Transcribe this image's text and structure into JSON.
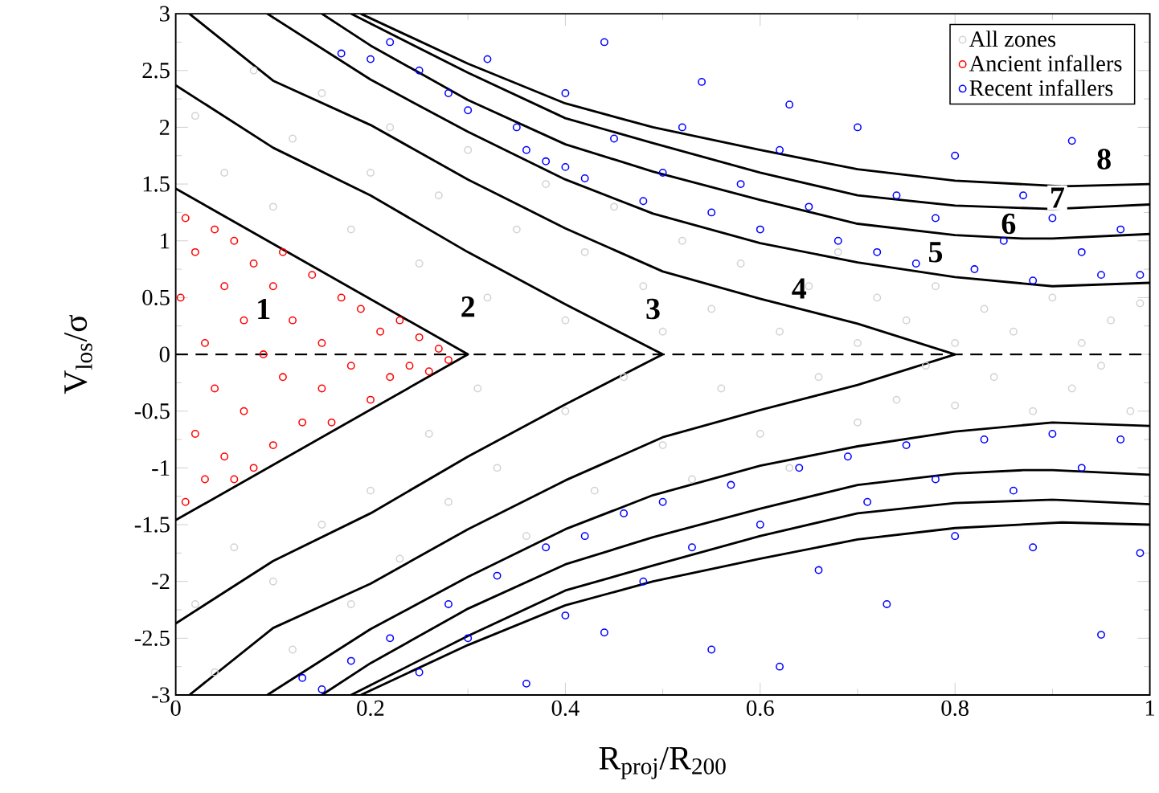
{
  "chart_data": {
    "type": "scatter",
    "xlabel": "R$_{proj}$/R$_{200}$",
    "ylabel": "V$_{los}$/σ",
    "xlim": [
      0,
      1
    ],
    "ylim": [
      -3,
      3
    ],
    "xticks": [
      0,
      0.2,
      0.4,
      0.6,
      0.8,
      1
    ],
    "yticks": [
      -3,
      -2.5,
      -2,
      -1.5,
      -1,
      -0.5,
      0,
      0.5,
      1,
      1.5,
      2,
      2.5,
      3
    ],
    "legend": "top right",
    "series": [
      {
        "name": "All zones",
        "type": "scatter",
        "marker": "circle",
        "color": "#d3d3d3",
        "x": [
          0.02,
          0.05,
          0.08,
          0.1,
          0.12,
          0.15,
          0.18,
          0.2,
          0.22,
          0.25,
          0.27,
          0.3,
          0.32,
          0.35,
          0.38,
          0.4,
          0.42,
          0.45,
          0.48,
          0.5,
          0.52,
          0.55,
          0.58,
          0.6,
          0.62,
          0.65,
          0.68,
          0.7,
          0.72,
          0.75,
          0.78,
          0.8,
          0.83,
          0.86,
          0.9,
          0.93,
          0.96,
          0.99,
          0.02,
          0.04,
          0.06,
          0.1,
          0.12,
          0.15,
          0.18,
          0.2,
          0.23,
          0.26,
          0.28,
          0.31,
          0.33,
          0.36,
          0.4,
          0.43,
          0.46,
          0.5,
          0.53,
          0.56,
          0.6,
          0.63,
          0.66,
          0.7,
          0.74,
          0.77,
          0.8,
          0.84,
          0.88,
          0.92,
          0.95,
          0.98
        ],
        "values": [
          2.1,
          1.6,
          2.5,
          1.3,
          1.9,
          2.3,
          1.1,
          1.6,
          2.0,
          0.8,
          1.4,
          1.8,
          0.5,
          1.1,
          1.5,
          0.3,
          0.9,
          1.3,
          0.6,
          0.2,
          1.0,
          0.4,
          0.8,
          1.1,
          0.2,
          0.6,
          0.9,
          0.1,
          0.5,
          0.3,
          0.6,
          0.1,
          0.4,
          0.2,
          0.5,
          0.1,
          0.3,
          0.45,
          -2.2,
          -2.8,
          -1.7,
          -2.0,
          -2.6,
          -1.5,
          -2.2,
          -1.2,
          -1.8,
          -0.7,
          -1.3,
          -0.3,
          -1.0,
          -1.6,
          -0.5,
          -1.2,
          -0.2,
          -0.8,
          -1.1,
          -0.3,
          -0.7,
          -1.0,
          -0.2,
          -0.6,
          -0.4,
          -0.1,
          -0.45,
          -0.2,
          -0.5,
          -0.3,
          -0.1,
          -0.5
        ]
      },
      {
        "name": "Ancient infallers",
        "type": "scatter",
        "marker": "circle",
        "color": "#ff0000",
        "x": [
          0.005,
          0.01,
          0.01,
          0.02,
          0.02,
          0.03,
          0.03,
          0.04,
          0.04,
          0.05,
          0.05,
          0.06,
          0.06,
          0.07,
          0.07,
          0.08,
          0.08,
          0.09,
          0.1,
          0.1,
          0.11,
          0.11,
          0.12,
          0.13,
          0.14,
          0.15,
          0.15,
          0.16,
          0.17,
          0.18,
          0.19,
          0.2,
          0.21,
          0.22,
          0.23,
          0.24,
          0.25,
          0.26,
          0.27,
          0.28
        ],
        "values": [
          0.5,
          1.2,
          -1.3,
          0.9,
          -0.7,
          0.1,
          -1.1,
          1.1,
          -0.3,
          0.6,
          -0.9,
          1.0,
          -1.1,
          0.3,
          -0.5,
          0.8,
          -1.0,
          0.0,
          0.6,
          -0.8,
          0.9,
          -0.2,
          0.3,
          -0.6,
          0.7,
          -0.3,
          0.1,
          -0.6,
          0.5,
          -0.1,
          0.4,
          -0.4,
          0.2,
          -0.2,
          0.3,
          -0.1,
          0.15,
          -0.15,
          0.05,
          -0.05
        ]
      },
      {
        "name": "Recent infallers",
        "type": "scatter",
        "marker": "circle",
        "color": "#0000ff",
        "x": [
          0.17,
          0.2,
          0.22,
          0.25,
          0.28,
          0.3,
          0.32,
          0.35,
          0.36,
          0.38,
          0.4,
          0.4,
          0.42,
          0.44,
          0.45,
          0.48,
          0.5,
          0.52,
          0.54,
          0.55,
          0.58,
          0.6,
          0.62,
          0.63,
          0.65,
          0.68,
          0.7,
          0.72,
          0.74,
          0.76,
          0.78,
          0.8,
          0.82,
          0.85,
          0.87,
          0.88,
          0.9,
          0.92,
          0.93,
          0.95,
          0.97,
          0.99,
          0.13,
          0.15,
          0.18,
          0.22,
          0.25,
          0.28,
          0.3,
          0.33,
          0.36,
          0.38,
          0.4,
          0.42,
          0.44,
          0.46,
          0.48,
          0.5,
          0.53,
          0.55,
          0.57,
          0.6,
          0.62,
          0.64,
          0.66,
          0.69,
          0.71,
          0.73,
          0.75,
          0.78,
          0.8,
          0.83,
          0.86,
          0.88,
          0.9,
          0.93,
          0.95,
          0.97,
          0.99
        ],
        "values": [
          2.65,
          2.6,
          2.75,
          2.5,
          2.3,
          2.15,
          2.6,
          2.0,
          1.8,
          1.7,
          1.65,
          2.3,
          1.55,
          2.75,
          1.9,
          1.35,
          1.6,
          2.0,
          2.4,
          1.25,
          1.5,
          1.1,
          1.8,
          2.2,
          1.3,
          1.0,
          2.0,
          0.9,
          1.4,
          0.8,
          1.2,
          1.75,
          0.75,
          1.0,
          1.4,
          0.65,
          1.2,
          1.88,
          0.9,
          0.7,
          1.1,
          0.7,
          -2.85,
          -2.95,
          -2.7,
          -2.5,
          -2.8,
          -2.2,
          -2.5,
          -1.95,
          -2.9,
          -1.7,
          -2.3,
          -1.6,
          -2.45,
          -1.4,
          -2.0,
          -1.3,
          -1.7,
          -2.6,
          -1.15,
          -1.5,
          -2.75,
          -1.0,
          -1.9,
          -0.9,
          -1.3,
          -2.2,
          -0.8,
          -1.1,
          -1.6,
          -0.75,
          -1.2,
          -1.7,
          -0.7,
          -1.0,
          -2.47,
          -0.75,
          -1.75
        ]
      },
      {
        "type": "line",
        "line_style": "solid",
        "color": "#000000",
        "x": [
          0,
          0.3,
          0
        ],
        "values": [
          1.46,
          0,
          -1.46
        ]
      },
      {
        "type": "line",
        "line_style": "solid",
        "color": "#000000",
        "x": [
          0,
          0.1,
          0.2,
          0.3,
          0.4,
          0.5,
          0.4,
          0.3,
          0.2,
          0.1,
          0
        ],
        "values": [
          2.37,
          1.82,
          1.4,
          0.9,
          0.44,
          0,
          -0.44,
          -0.9,
          -1.4,
          -1.82,
          -2.37
        ]
      },
      {
        "type": "line",
        "line_style": "solid",
        "color": "#000000",
        "x": [
          0.014,
          0.1,
          0.2,
          0.3,
          0.4,
          0.5,
          0.6,
          0.7,
          0.8,
          0.7,
          0.6,
          0.5,
          0.4,
          0.3,
          0.2,
          0.1,
          0.014
        ],
        "values": [
          3,
          2.41,
          2.02,
          1.54,
          1.11,
          0.73,
          0.49,
          0.27,
          0,
          -0.27,
          -0.49,
          -0.73,
          -1.11,
          -1.54,
          -2.02,
          -2.41,
          -3
        ]
      },
      {
        "type": "line",
        "line_style": "solid",
        "color": "#000000",
        "x": [
          0.094,
          0.2,
          0.3,
          0.4,
          0.49,
          0.6,
          0.7,
          0.8,
          0.9,
          1
        ],
        "values": [
          3,
          2.42,
          1.96,
          1.54,
          1.24,
          0.98,
          0.81,
          0.68,
          0.6,
          0.63
        ]
      },
      {
        "type": "line",
        "line_style": "solid",
        "color": "#000000",
        "x": [
          0.15,
          0.2,
          0.3,
          0.4,
          0.49,
          0.6,
          0.7,
          0.8,
          0.87,
          0.9,
          1
        ],
        "values": [
          3,
          2.72,
          2.24,
          1.85,
          1.61,
          1.36,
          1.15,
          1.05,
          1.02,
          1.02,
          1.06
        ]
      },
      {
        "type": "line",
        "line_style": "solid",
        "color": "#000000",
        "x": [
          0.18,
          0.3,
          0.4,
          0.49,
          0.6,
          0.7,
          0.8,
          0.9,
          1
        ],
        "values": [
          3,
          2.48,
          2.08,
          1.86,
          1.6,
          1.4,
          1.31,
          1.28,
          1.32
        ]
      },
      {
        "type": "line",
        "line_style": "solid",
        "color": "#000000",
        "x": [
          0.19,
          0.3,
          0.4,
          0.49,
          0.6,
          0.7,
          0.8,
          0.91,
          1
        ],
        "values": [
          3,
          2.56,
          2.21,
          2.0,
          1.8,
          1.63,
          1.53,
          1.48,
          1.5
        ]
      },
      {
        "type": "line",
        "line_style": "solid",
        "color": "#000000",
        "x": [
          0.094,
          0.2,
          0.3,
          0.4,
          0.49,
          0.6,
          0.7,
          0.8,
          0.9,
          1
        ],
        "values": [
          -3,
          -2.42,
          -1.96,
          -1.54,
          -1.24,
          -0.98,
          -0.81,
          -0.68,
          -0.6,
          -0.63
        ]
      },
      {
        "type": "line",
        "line_style": "solid",
        "color": "#000000",
        "x": [
          0.15,
          0.2,
          0.3,
          0.4,
          0.49,
          0.6,
          0.7,
          0.8,
          0.87,
          0.9,
          1
        ],
        "values": [
          -3,
          -2.72,
          -2.24,
          -1.85,
          -1.61,
          -1.36,
          -1.15,
          -1.05,
          -1.02,
          -1.02,
          -1.06
        ]
      },
      {
        "type": "line",
        "line_style": "solid",
        "color": "#000000",
        "x": [
          0.18,
          0.3,
          0.4,
          0.49,
          0.6,
          0.7,
          0.8,
          0.9,
          1
        ],
        "values": [
          -3,
          -2.48,
          -2.08,
          -1.86,
          -1.6,
          -1.4,
          -1.31,
          -1.28,
          -1.32
        ]
      },
      {
        "type": "line",
        "line_style": "solid",
        "color": "#000000",
        "x": [
          0.19,
          0.3,
          0.4,
          0.49,
          0.6,
          0.7,
          0.8,
          0.91,
          1
        ],
        "values": [
          -3,
          -2.56,
          -2.21,
          -2.0,
          -1.8,
          -1.63,
          -1.53,
          -1.48,
          -1.5
        ]
      }
    ],
    "ref_lines": [
      {
        "axis": "y",
        "value": 0,
        "color": "#000000",
        "line_style": "dashed"
      }
    ],
    "annotations": [
      {
        "text": "1",
        "x": 0.09,
        "y": 0.4
      },
      {
        "text": "2",
        "x": 0.3,
        "y": 0.42
      },
      {
        "text": "3",
        "x": 0.49,
        "y": 0.4
      },
      {
        "text": "4",
        "x": 0.64,
        "y": 0.58
      },
      {
        "text": "5",
        "x": 0.78,
        "y": 0.9
      },
      {
        "text": "6",
        "x": 0.855,
        "y": 1.15
      },
      {
        "text": "7",
        "x": 0.905,
        "y": 1.38
      },
      {
        "text": "8",
        "x": 0.953,
        "y": 1.72
      }
    ]
  }
}
